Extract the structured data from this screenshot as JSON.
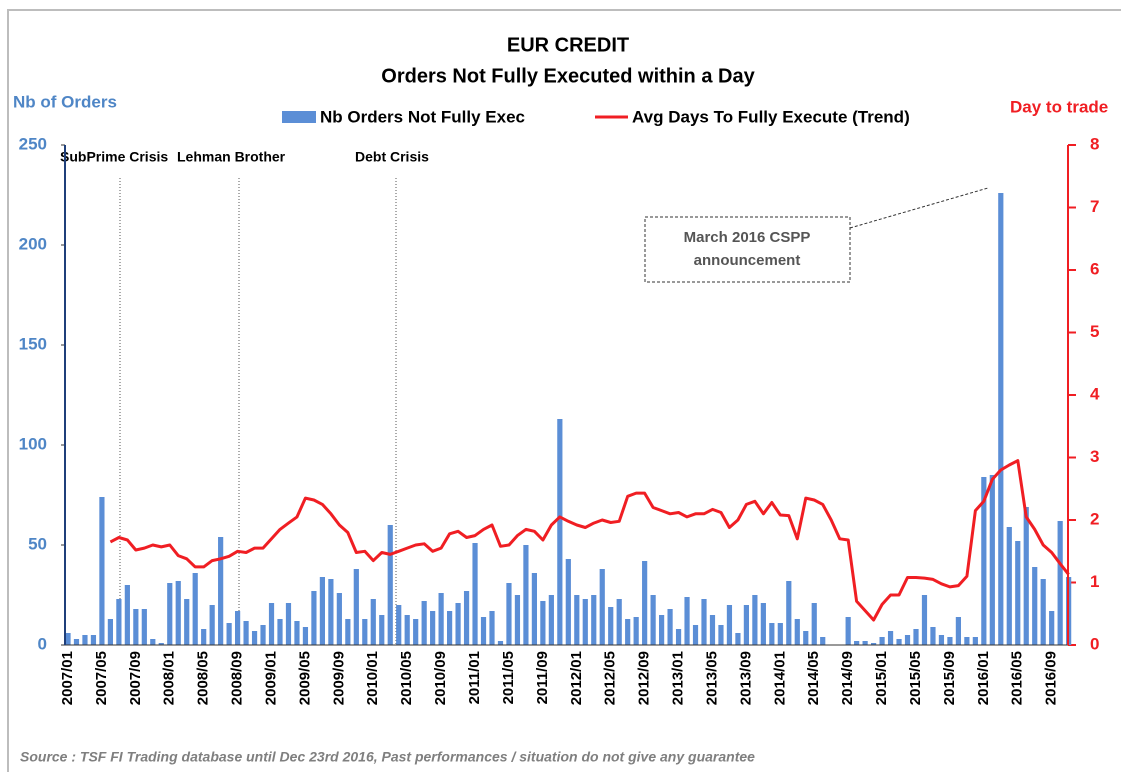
{
  "chart_data": {
    "type": "bar_line",
    "title": "EUR CREDIT",
    "subtitle": "Orders Not Fully Executed within a Day",
    "y_label": "Nb of Orders",
    "y2_label": "Day to trade",
    "categories": [
      "2007/01",
      null,
      null,
      null,
      "2007/05",
      null,
      null,
      null,
      "2007/09",
      null,
      null,
      null,
      "2008/01",
      null,
      null,
      null,
      "2008/05",
      null,
      null,
      null,
      "2008/09",
      null,
      null,
      null,
      "2009/01",
      null,
      null,
      null,
      "2009/05",
      null,
      null,
      null,
      "2009/09",
      null,
      null,
      null,
      "2010/01",
      null,
      null,
      null,
      "2010/05",
      null,
      null,
      null,
      "2010/09",
      null,
      null,
      null,
      "2011/01",
      null,
      null,
      null,
      "2011/05",
      null,
      null,
      null,
      "2011/09",
      null,
      null,
      null,
      "2012/01",
      null,
      null,
      null,
      "2012/05",
      null,
      null,
      null,
      "2012/09",
      null,
      null,
      null,
      "2013/01",
      null,
      null,
      null,
      "2013/05",
      null,
      null,
      null,
      "2013/09",
      null,
      null,
      null,
      "2014/01",
      null,
      null,
      null,
      "2014/05",
      null,
      null,
      null,
      "2014/09",
      null,
      null,
      null,
      "2015/01",
      null,
      null,
      null,
      "2015/05",
      null,
      null,
      null,
      "2015/09",
      null,
      null,
      null,
      "2016/01",
      null,
      null,
      null,
      "2016/05",
      null,
      null,
      null,
      "2016/09",
      null,
      null
    ],
    "series": [
      {
        "name": "Nb Orders Not Fully Exec",
        "color": "#5b8ed6",
        "type": "bar",
        "values": [
          6,
          3,
          5,
          5,
          74,
          13,
          23,
          30,
          18,
          18,
          3,
          1,
          31,
          32,
          23,
          36,
          8,
          20,
          54,
          11,
          17,
          12,
          7,
          10,
          21,
          13,
          21,
          12,
          9,
          27,
          34,
          33,
          26,
          13,
          38,
          13,
          23,
          15,
          60,
          20,
          15,
          13,
          22,
          17,
          26,
          17,
          21,
          27,
          51,
          14,
          17,
          2,
          31,
          25,
          50,
          36,
          22,
          25,
          113,
          43,
          25,
          23,
          25,
          38,
          19,
          23,
          13,
          14,
          42,
          25,
          15,
          18,
          8,
          24,
          10,
          23,
          15,
          10,
          20,
          6,
          20,
          25,
          21,
          11,
          11,
          32,
          13,
          7,
          21,
          4,
          0,
          0,
          14,
          2,
          2,
          1,
          4,
          7,
          3,
          5,
          8,
          25,
          9,
          5,
          4,
          14,
          4,
          4,
          84,
          85,
          226,
          59,
          52,
          69,
          39,
          33,
          17,
          62,
          34
        ]
      },
      {
        "name": "Avg Days To Fully Execute (Trend)",
        "color": "#f01e23",
        "type": "line",
        "axis": "y2",
        "values": [
          null,
          null,
          null,
          null,
          null,
          1.65,
          1.72,
          1.68,
          1.52,
          1.55,
          1.6,
          1.57,
          1.6,
          1.43,
          1.38,
          1.25,
          1.25,
          1.35,
          1.38,
          1.42,
          1.5,
          1.48,
          1.55,
          1.55,
          1.7,
          1.85,
          1.95,
          2.05,
          2.35,
          2.32,
          2.25,
          2.1,
          1.92,
          1.8,
          1.48,
          1.5,
          1.35,
          1.48,
          1.45,
          1.5,
          1.55,
          1.6,
          1.62,
          1.5,
          1.55,
          1.78,
          1.82,
          1.72,
          1.75,
          1.85,
          1.92,
          1.58,
          1.6,
          1.75,
          1.85,
          1.82,
          1.68,
          1.92,
          2.05,
          1.98,
          1.92,
          1.88,
          1.95,
          2.0,
          1.96,
          1.98,
          2.38,
          2.43,
          2.43,
          2.2,
          2.15,
          2.1,
          2.12,
          2.05,
          2.1,
          2.1,
          2.17,
          2.12,
          1.88,
          2.0,
          2.25,
          2.3,
          2.1,
          2.28,
          2.08,
          2.07,
          1.7,
          2.35,
          2.32,
          2.25,
          2.0,
          1.7,
          1.68,
          0.7,
          0.55,
          0.4,
          0.65,
          0.8,
          0.8,
          1.08,
          1.08,
          1.07,
          1.05,
          0.98,
          0.93,
          0.95,
          1.1,
          2.15,
          2.3,
          2.65,
          2.8,
          2.88,
          2.95,
          2.05,
          1.85,
          1.6,
          1.48,
          1.3,
          1.13
        ]
      }
    ],
    "ylim": [
      0,
      250
    ],
    "yticks": [
      0,
      50,
      100,
      150,
      200,
      250
    ],
    "y2lim": [
      0,
      8
    ],
    "y2ticks": [
      0,
      1,
      2,
      3,
      4,
      5,
      6,
      7,
      8
    ],
    "events": [
      "SubPrime Crisis",
      "Lehman Brother",
      "Debt Crisis"
    ],
    "callout": [
      "March 2016 CSPP",
      "announcement"
    ],
    "source": "Source : TSF FI Trading database until Dec 23rd  2016, Past performances / situation do not give any guarantee"
  }
}
